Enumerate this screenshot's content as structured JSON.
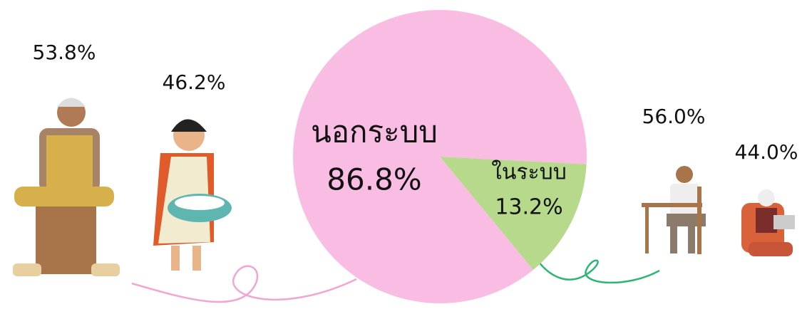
{
  "chart_data": {
    "type": "pie",
    "categories": [
      "นอกระบบ",
      "ในระบบ"
    ],
    "values": [
      86.8,
      13.2
    ],
    "value_labels": [
      "86.8%",
      "13.2%"
    ],
    "colors": [
      "#f9bde3",
      "#b7d98c"
    ],
    "groups": [
      {
        "values": [
          53.8,
          46.2
        ],
        "value_labels": [
          "53.8%",
          "46.2%"
        ]
      },
      {
        "values": [
          56.0,
          44.0
        ],
        "value_labels": [
          "56.0%",
          "44.0%"
        ]
      }
    ]
  }
}
